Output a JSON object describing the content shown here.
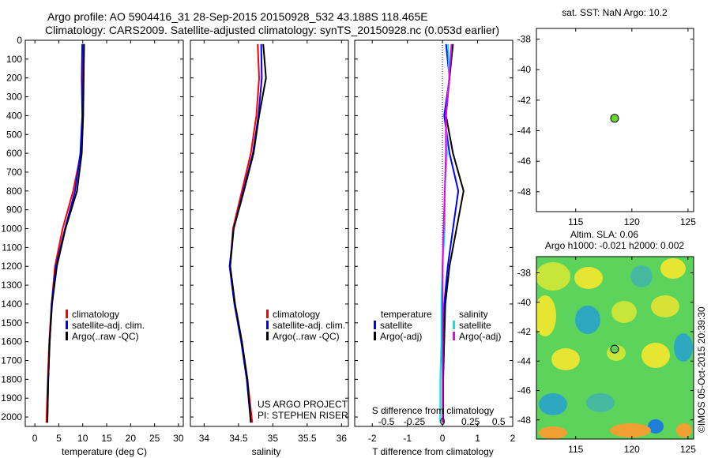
{
  "header": {
    "line1": "Argo profile: AO 5904416_31 28-Sep-2015 20150928_532 43.188S 118.465E",
    "line2": "Climatology: CARS2009. Satellite-adjusted climatology: synTS_20150928.nc (0.053d earlier)"
  },
  "colors": {
    "climatology": "#ff0000",
    "satellite": "#0000ff",
    "argo": "#000000",
    "sat_s": "#00e5ee",
    "argo_s": "#ee00ee",
    "marker": "#66dd22"
  },
  "chart_data": [
    {
      "type": "line",
      "id": "temperature",
      "xlabel": "temperature (deg C)",
      "xlim": [
        -2,
        31
      ],
      "xticks": [
        0,
        5,
        10,
        15,
        20,
        25,
        30
      ],
      "ylim": [
        0,
        2050
      ],
      "yticks": [
        0,
        100,
        200,
        300,
        400,
        500,
        600,
        700,
        800,
        900,
        1000,
        1100,
        1200,
        1300,
        1400,
        1500,
        1600,
        1700,
        1800,
        1900,
        2000
      ],
      "legend": [
        "climatology",
        "satellite-adj. clim.",
        "Argo(..raw -QC)"
      ],
      "series": [
        {
          "name": "climatology",
          "color": "#ff0000",
          "points": [
            [
              10.2,
              20
            ],
            [
              10.1,
              200
            ],
            [
              10,
              400
            ],
            [
              9.6,
              600
            ],
            [
              8,
              800
            ],
            [
              5.8,
              1000
            ],
            [
              4.2,
              1200
            ],
            [
              3.5,
              1400
            ],
            [
              3,
              1600
            ],
            [
              2.7,
              1800
            ],
            [
              2.4,
              2030
            ]
          ]
        },
        {
          "name": "satellite-adj. clim.",
          "color": "#0000ff",
          "points": [
            [
              9.9,
              20
            ],
            [
              9.8,
              200
            ],
            [
              9.9,
              400
            ],
            [
              9.5,
              600
            ],
            [
              8.4,
              800
            ],
            [
              6.3,
              1000
            ],
            [
              4.4,
              1200
            ],
            [
              3.5,
              1400
            ],
            [
              3.1,
              1600
            ],
            [
              2.8,
              1800
            ],
            [
              2.6,
              2030
            ]
          ]
        },
        {
          "name": "Argo(..raw -QC)",
          "color": "#000000",
          "points": [
            [
              10.3,
              20
            ],
            [
              10.2,
              200
            ],
            [
              10.1,
              400
            ],
            [
              9.8,
              600
            ],
            [
              8.8,
              800
            ],
            [
              6.4,
              1000
            ],
            [
              4.6,
              1200
            ],
            [
              3.6,
              1400
            ],
            [
              3.1,
              1600
            ],
            [
              2.8,
              1800
            ],
            [
              2.6,
              2030
            ]
          ]
        }
      ]
    },
    {
      "type": "line",
      "id": "salinity",
      "xlabel": "salinity",
      "xlim": [
        33.8,
        36.1
      ],
      "xticks": [
        34,
        34.5,
        35,
        35.5,
        36
      ],
      "ylim": [
        0,
        2050
      ],
      "legend": [
        "climatology",
        "satellite-adj. clim.",
        "Argo(..raw -QC)"
      ],
      "annotation1": "US ARGO PROJECT",
      "annotation2": "PI: STEPHEN RISER",
      "series": [
        {
          "name": "climatology",
          "color": "#ff0000",
          "points": [
            [
              34.78,
              20
            ],
            [
              34.8,
              200
            ],
            [
              34.76,
              400
            ],
            [
              34.68,
              600
            ],
            [
              34.55,
              800
            ],
            [
              34.42,
              1000
            ],
            [
              34.38,
              1200
            ],
            [
              34.45,
              1400
            ],
            [
              34.55,
              1600
            ],
            [
              34.63,
              1800
            ],
            [
              34.7,
              2030
            ]
          ]
        },
        {
          "name": "satellite-adj. clim.",
          "color": "#0000ff",
          "points": [
            [
              34.83,
              20
            ],
            [
              34.84,
              200
            ],
            [
              34.79,
              400
            ],
            [
              34.71,
              600
            ],
            [
              34.57,
              800
            ],
            [
              34.43,
              1000
            ],
            [
              34.37,
              1200
            ],
            [
              34.44,
              1400
            ],
            [
              34.54,
              1600
            ],
            [
              34.62,
              1800
            ],
            [
              34.68,
              2030
            ]
          ]
        },
        {
          "name": "Argo(..raw -QC)",
          "color": "#000000",
          "points": [
            [
              34.86,
              20
            ],
            [
              34.9,
              200
            ],
            [
              34.8,
              400
            ],
            [
              34.72,
              600
            ],
            [
              34.58,
              800
            ],
            [
              34.43,
              1000
            ],
            [
              34.38,
              1200
            ],
            [
              34.45,
              1400
            ],
            [
              34.55,
              1600
            ],
            [
              34.63,
              1800
            ],
            [
              34.68,
              2030
            ]
          ]
        }
      ]
    },
    {
      "type": "line",
      "id": "difference",
      "xlabel": "T difference from climatology",
      "xlabel2": "S difference from climatology",
      "xlim": [
        -2.5,
        2.0
      ],
      "xticks": [
        -2,
        -1,
        0,
        1,
        2
      ],
      "xticks2": [
        "-0.5",
        "-0.25",
        "0",
        "0.25",
        "0.5"
      ],
      "ylim": [
        0,
        2050
      ],
      "legend_headers": [
        "temperature",
        "salinity"
      ],
      "legend": [
        "satellite",
        "Argo(-adj)",
        "satellite",
        "Argo(-adj)"
      ],
      "series": [
        {
          "name": "temperature satellite",
          "color": "#0000ff",
          "points": [
            [
              0.1,
              20
            ],
            [
              0.2,
              200
            ],
            [
              0.05,
              400
            ],
            [
              0.2,
              600
            ],
            [
              0.45,
              800
            ],
            [
              0.3,
              1000
            ],
            [
              0.15,
              1200
            ],
            [
              0.05,
              1400
            ],
            [
              0.03,
              1600
            ],
            [
              0.02,
              1800
            ],
            [
              0.02,
              2030
            ]
          ]
        },
        {
          "name": "temperature Argo(-adj)",
          "color": "#000000",
          "points": [
            [
              0.3,
              20
            ],
            [
              0.2,
              200
            ],
            [
              0.1,
              400
            ],
            [
              0.3,
              600
            ],
            [
              0.6,
              800
            ],
            [
              0.4,
              1000
            ],
            [
              0.2,
              1200
            ],
            [
              0.08,
              1400
            ],
            [
              0.05,
              1600
            ],
            [
              0.02,
              1800
            ],
            [
              0.02,
              2030
            ]
          ]
        },
        {
          "name": "salinity satellite",
          "color": "#00e5ee",
          "points": [
            [
              0.05,
              20
            ],
            [
              0.06,
              200
            ],
            [
              0.03,
              400
            ],
            [
              0.04,
              600
            ],
            [
              0.02,
              800
            ],
            [
              0.02,
              1000
            ],
            [
              0,
              1200
            ],
            [
              -0.01,
              1400
            ],
            [
              -0.01,
              1600
            ],
            [
              -0.02,
              1800
            ],
            [
              -0.02,
              2030
            ]
          ]
        },
        {
          "name": "salinity Argo(-adj)",
          "color": "#ee00ee",
          "points": [
            [
              0.08,
              20
            ],
            [
              0.06,
              200
            ],
            [
              0.03,
              400
            ],
            [
              0.03,
              600
            ],
            [
              0.02,
              800
            ],
            [
              0.01,
              1000
            ],
            [
              0,
              1200
            ],
            [
              0,
              1400
            ],
            [
              0,
              1600
            ],
            [
              0,
              1800
            ],
            [
              0,
              2030
            ]
          ]
        }
      ]
    },
    {
      "type": "scatter",
      "id": "sst-map",
      "title": "sat. SST: NaN Argo: 10.2",
      "xlim": [
        111.5,
        125.5
      ],
      "ylim": [
        -49.3,
        -37.3
      ],
      "xticks": [
        115,
        120,
        125
      ],
      "yticks": [
        -38,
        -40,
        -42,
        -44,
        -46,
        -48
      ],
      "points": [
        [
          118.465,
          -43.188
        ]
      ]
    },
    {
      "type": "heatmap",
      "id": "sla-map",
      "title1": "Altim. SLA: 0.06",
      "title2": "Argo h1000: -0.021 h2000: 0.002",
      "xlim": [
        111.5,
        125.5
      ],
      "ylim": [
        -49.3,
        -36.9
      ],
      "xticks": [
        115,
        120,
        125
      ],
      "yticks": [
        -38,
        -40,
        -42,
        -44,
        -46,
        -48
      ],
      "points": [
        [
          118.465,
          -43.188
        ]
      ],
      "side_label": "©IMOS 05-Oct-2015 20:39:30"
    }
  ]
}
